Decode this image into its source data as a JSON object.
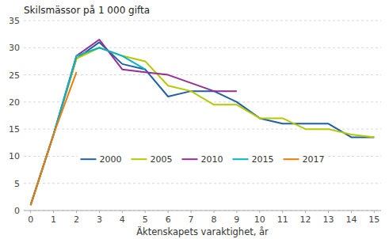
{
  "chart_data": {
    "type": "line",
    "title": "Skilsmässor på 1 000 gifta",
    "xlabel": "Äktenskapets varaktighet, år",
    "x": [
      0,
      1,
      2,
      3,
      4,
      5,
      6,
      7,
      8,
      9,
      10,
      11,
      12,
      13,
      14,
      15
    ],
    "series": [
      {
        "name": "2000",
        "color": "#1f5fa6",
        "values": [
          1,
          14,
          28,
          31,
          27,
          26,
          21,
          22,
          22,
          20,
          17,
          16,
          16,
          16,
          13.5,
          13.5
        ]
      },
      {
        "name": "2005",
        "color": "#b5c900",
        "values": [
          1,
          14,
          28,
          30,
          28.5,
          27.5,
          23,
          22,
          19.5,
          19.5,
          17,
          17,
          15,
          15,
          14,
          13.5
        ]
      },
      {
        "name": "2010",
        "color": "#962d91",
        "values": [
          1,
          14,
          28.5,
          31.5,
          26,
          25.5,
          25,
          23.5,
          22,
          22,
          null,
          null,
          null,
          null,
          null,
          null
        ]
      },
      {
        "name": "2015",
        "color": "#00b5c8",
        "values": [
          1,
          14,
          28.5,
          30,
          28.5,
          26,
          null,
          null,
          null,
          null,
          null,
          null,
          null,
          null,
          null,
          null
        ]
      },
      {
        "name": "2017",
        "color": "#e87d0d",
        "values": [
          1,
          14,
          25.5,
          null,
          null,
          null,
          null,
          null,
          null,
          null,
          null,
          null,
          null,
          null,
          null,
          null
        ]
      }
    ],
    "xlim": [
      -0.3,
      15.3
    ],
    "xticks": [
      0,
      1,
      2,
      3,
      4,
      5,
      6,
      7,
      8,
      9,
      10,
      11,
      12,
      13,
      14,
      15
    ],
    "ylim": [
      0,
      35
    ],
    "yticks": [
      0,
      5,
      10,
      15,
      20,
      25,
      30,
      35
    ],
    "grid": true,
    "legend": "lower center"
  }
}
